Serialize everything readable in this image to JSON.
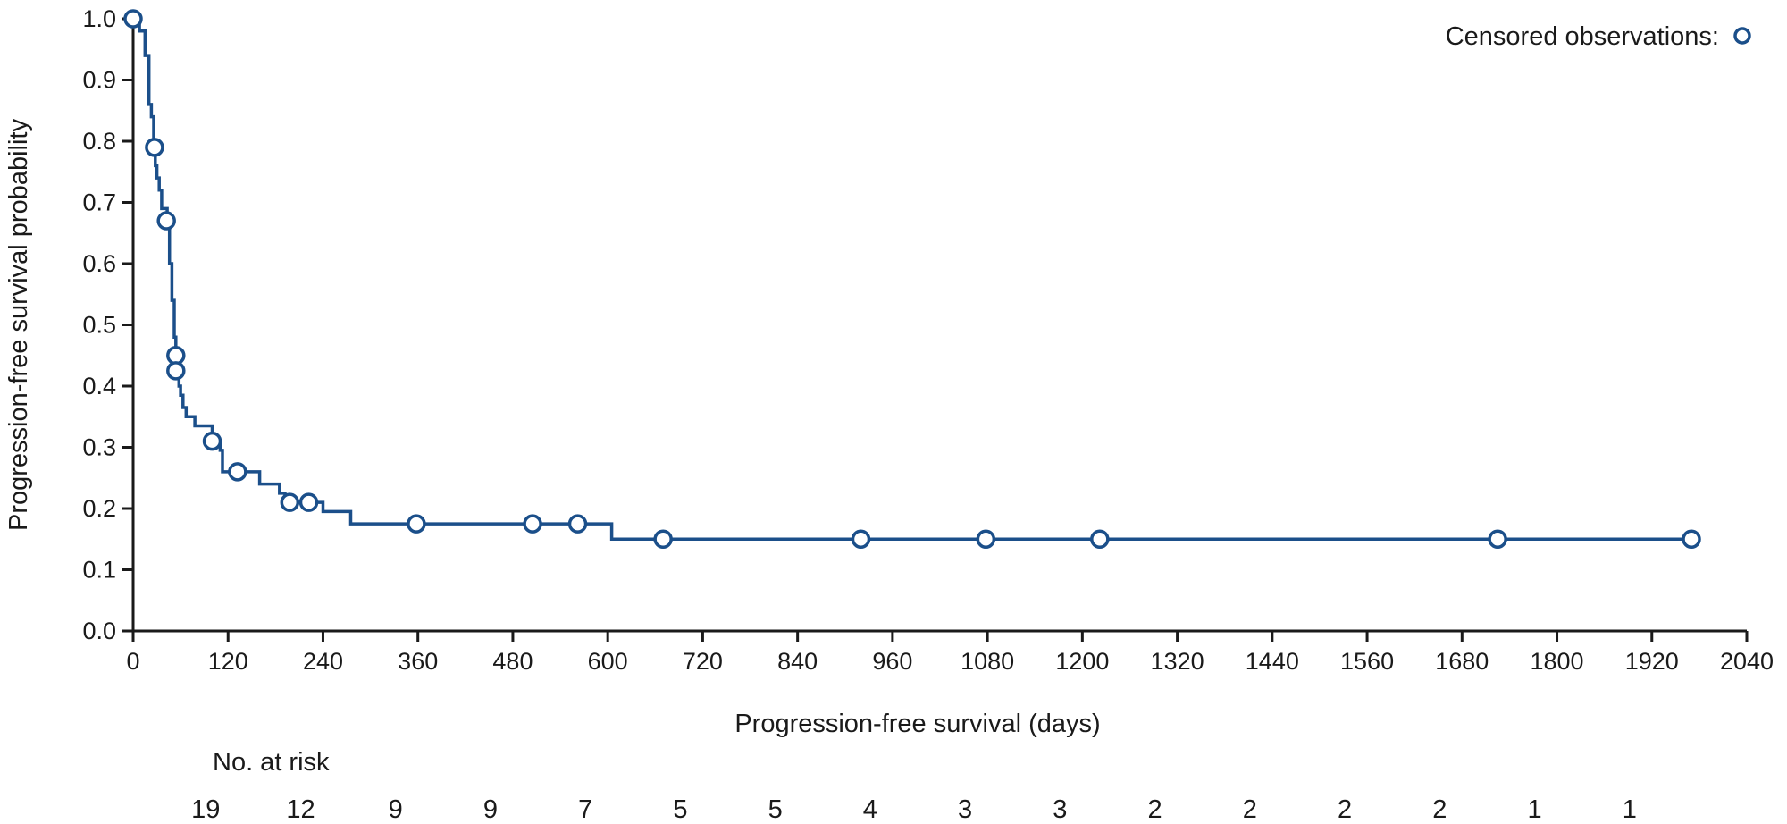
{
  "chart_data": {
    "type": "line",
    "title": "",
    "xlabel": "Progression-free survival (days)",
    "ylabel": "Progression-free survival probability",
    "xlim": [
      0,
      2040
    ],
    "ylim": [
      0,
      1.0
    ],
    "x_ticks": [
      0,
      120,
      240,
      360,
      480,
      600,
      720,
      840,
      960,
      1080,
      1200,
      1320,
      1440,
      1560,
      1680,
      1800,
      1920,
      2040
    ],
    "y_ticks": [
      "0.0",
      "0.1",
      "0.2",
      "0.3",
      "0.4",
      "0.5",
      "0.6",
      "0.7",
      "0.8",
      "0.9",
      "1.0"
    ],
    "grid": false,
    "legend": {
      "position": "top-right",
      "label": "Censored observations:"
    },
    "color": "#1b4f8a",
    "series": [
      {
        "style": "step",
        "points": [
          [
            0,
            1.0
          ],
          [
            8,
            1.0
          ],
          [
            8,
            0.98
          ],
          [
            15,
            0.98
          ],
          [
            15,
            0.94
          ],
          [
            20,
            0.94
          ],
          [
            20,
            0.86
          ],
          [
            23,
            0.86
          ],
          [
            23,
            0.84
          ],
          [
            26,
            0.84
          ],
          [
            26,
            0.79
          ],
          [
            28,
            0.79
          ],
          [
            28,
            0.76
          ],
          [
            30,
            0.76
          ],
          [
            30,
            0.74
          ],
          [
            33,
            0.74
          ],
          [
            33,
            0.72
          ],
          [
            36,
            0.72
          ],
          [
            36,
            0.69
          ],
          [
            43,
            0.69
          ],
          [
            43,
            0.67
          ],
          [
            46,
            0.67
          ],
          [
            46,
            0.6
          ],
          [
            49,
            0.6
          ],
          [
            49,
            0.54
          ],
          [
            52,
            0.54
          ],
          [
            52,
            0.48
          ],
          [
            54,
            0.48
          ],
          [
            54,
            0.45
          ],
          [
            56,
            0.45
          ],
          [
            56,
            0.425
          ],
          [
            58,
            0.425
          ],
          [
            58,
            0.4
          ],
          [
            60,
            0.4
          ],
          [
            60,
            0.385
          ],
          [
            63,
            0.385
          ],
          [
            63,
            0.365
          ],
          [
            67,
            0.365
          ],
          [
            67,
            0.35
          ],
          [
            78,
            0.35
          ],
          [
            78,
            0.335
          ],
          [
            100,
            0.335
          ],
          [
            100,
            0.31
          ],
          [
            110,
            0.31
          ],
          [
            110,
            0.295
          ],
          [
            113,
            0.295
          ],
          [
            113,
            0.26
          ],
          [
            160,
            0.26
          ],
          [
            160,
            0.24
          ],
          [
            185,
            0.24
          ],
          [
            185,
            0.225
          ],
          [
            192,
            0.225
          ],
          [
            192,
            0.21
          ],
          [
            240,
            0.21
          ],
          [
            240,
            0.195
          ],
          [
            275,
            0.195
          ],
          [
            275,
            0.175
          ],
          [
            605,
            0.175
          ],
          [
            605,
            0.15
          ],
          [
            1970,
            0.15
          ]
        ],
        "censored": [
          [
            0,
            1.0
          ],
          [
            27,
            0.79
          ],
          [
            42,
            0.67
          ],
          [
            54,
            0.45
          ],
          [
            54,
            0.425
          ],
          [
            100,
            0.31
          ],
          [
            132,
            0.26
          ],
          [
            198,
            0.21
          ],
          [
            222,
            0.21
          ],
          [
            358,
            0.175
          ],
          [
            505,
            0.175
          ],
          [
            562,
            0.175
          ],
          [
            670,
            0.15
          ],
          [
            920,
            0.15
          ],
          [
            1078,
            0.15
          ],
          [
            1222,
            0.15
          ],
          [
            1725,
            0.15
          ],
          [
            1970,
            0.15
          ]
        ]
      }
    ],
    "at_risk": {
      "label": "No. at risk",
      "times": [
        120,
        240,
        360,
        480,
        600,
        720,
        840,
        960,
        1080,
        1200,
        1320,
        1440,
        1560,
        1680,
        1800,
        1920
      ],
      "counts": [
        "19",
        "12",
        "9",
        "9",
        "7",
        "5",
        "5",
        "4",
        "3",
        "3",
        "2",
        "2",
        "2",
        "2",
        "1",
        "1"
      ]
    }
  }
}
